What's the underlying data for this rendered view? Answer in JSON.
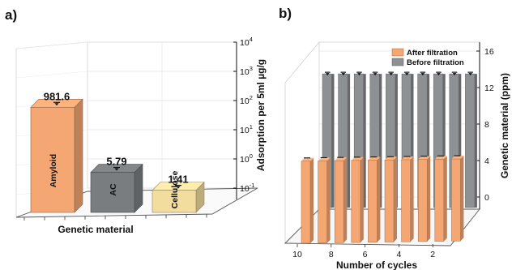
{
  "panels": {
    "a_label": "a)",
    "b_label": "b)"
  },
  "chart_data": [
    {
      "type": "bar",
      "title": "",
      "xlabel": "Genetic material",
      "ylabel": "Adsorption per 5ml µg/g",
      "yscale": "log",
      "ylim": [
        0.1,
        10000
      ],
      "ytick_base": "10",
      "ytick_exponents": [
        "-1",
        "0",
        "1",
        "2",
        "3",
        "4"
      ],
      "categories": [
        "Amyloid",
        "AC",
        "Cellulose"
      ],
      "values": [
        981.6,
        5.79,
        1.41
      ],
      "value_labels": [
        "981.6",
        "5.79",
        "1.41"
      ],
      "colors": [
        "#F4A673",
        "#7A7D80",
        "#F2DC9E"
      ],
      "grid": true
    },
    {
      "type": "bar",
      "title": "",
      "xlabel": "Number of cycles",
      "ylabel": "Genetic material (ppm)",
      "ylim": [
        -2,
        17
      ],
      "yticks": [
        "0",
        "4",
        "8",
        "12",
        "16"
      ],
      "x": [
        10,
        9,
        8,
        7,
        6,
        5,
        4,
        3,
        2,
        1
      ],
      "xtick_labels": [
        "10",
        "8",
        "6",
        "4",
        "2"
      ],
      "legend_position": "top-right",
      "grid": true,
      "series": [
        {
          "name": "After filtration",
          "color": "#F4A673",
          "values": [
            0.3,
            0.3,
            0.3,
            0.3,
            0.3,
            0.3,
            0.3,
            0.3,
            0.3,
            0.3
          ]
        },
        {
          "name": "Before filtration",
          "color": "#8E9194",
          "values": [
            13.5,
            13.5,
            13.5,
            13.5,
            13.5,
            13.5,
            13.5,
            13.5,
            13.5,
            13.5
          ]
        }
      ]
    }
  ]
}
